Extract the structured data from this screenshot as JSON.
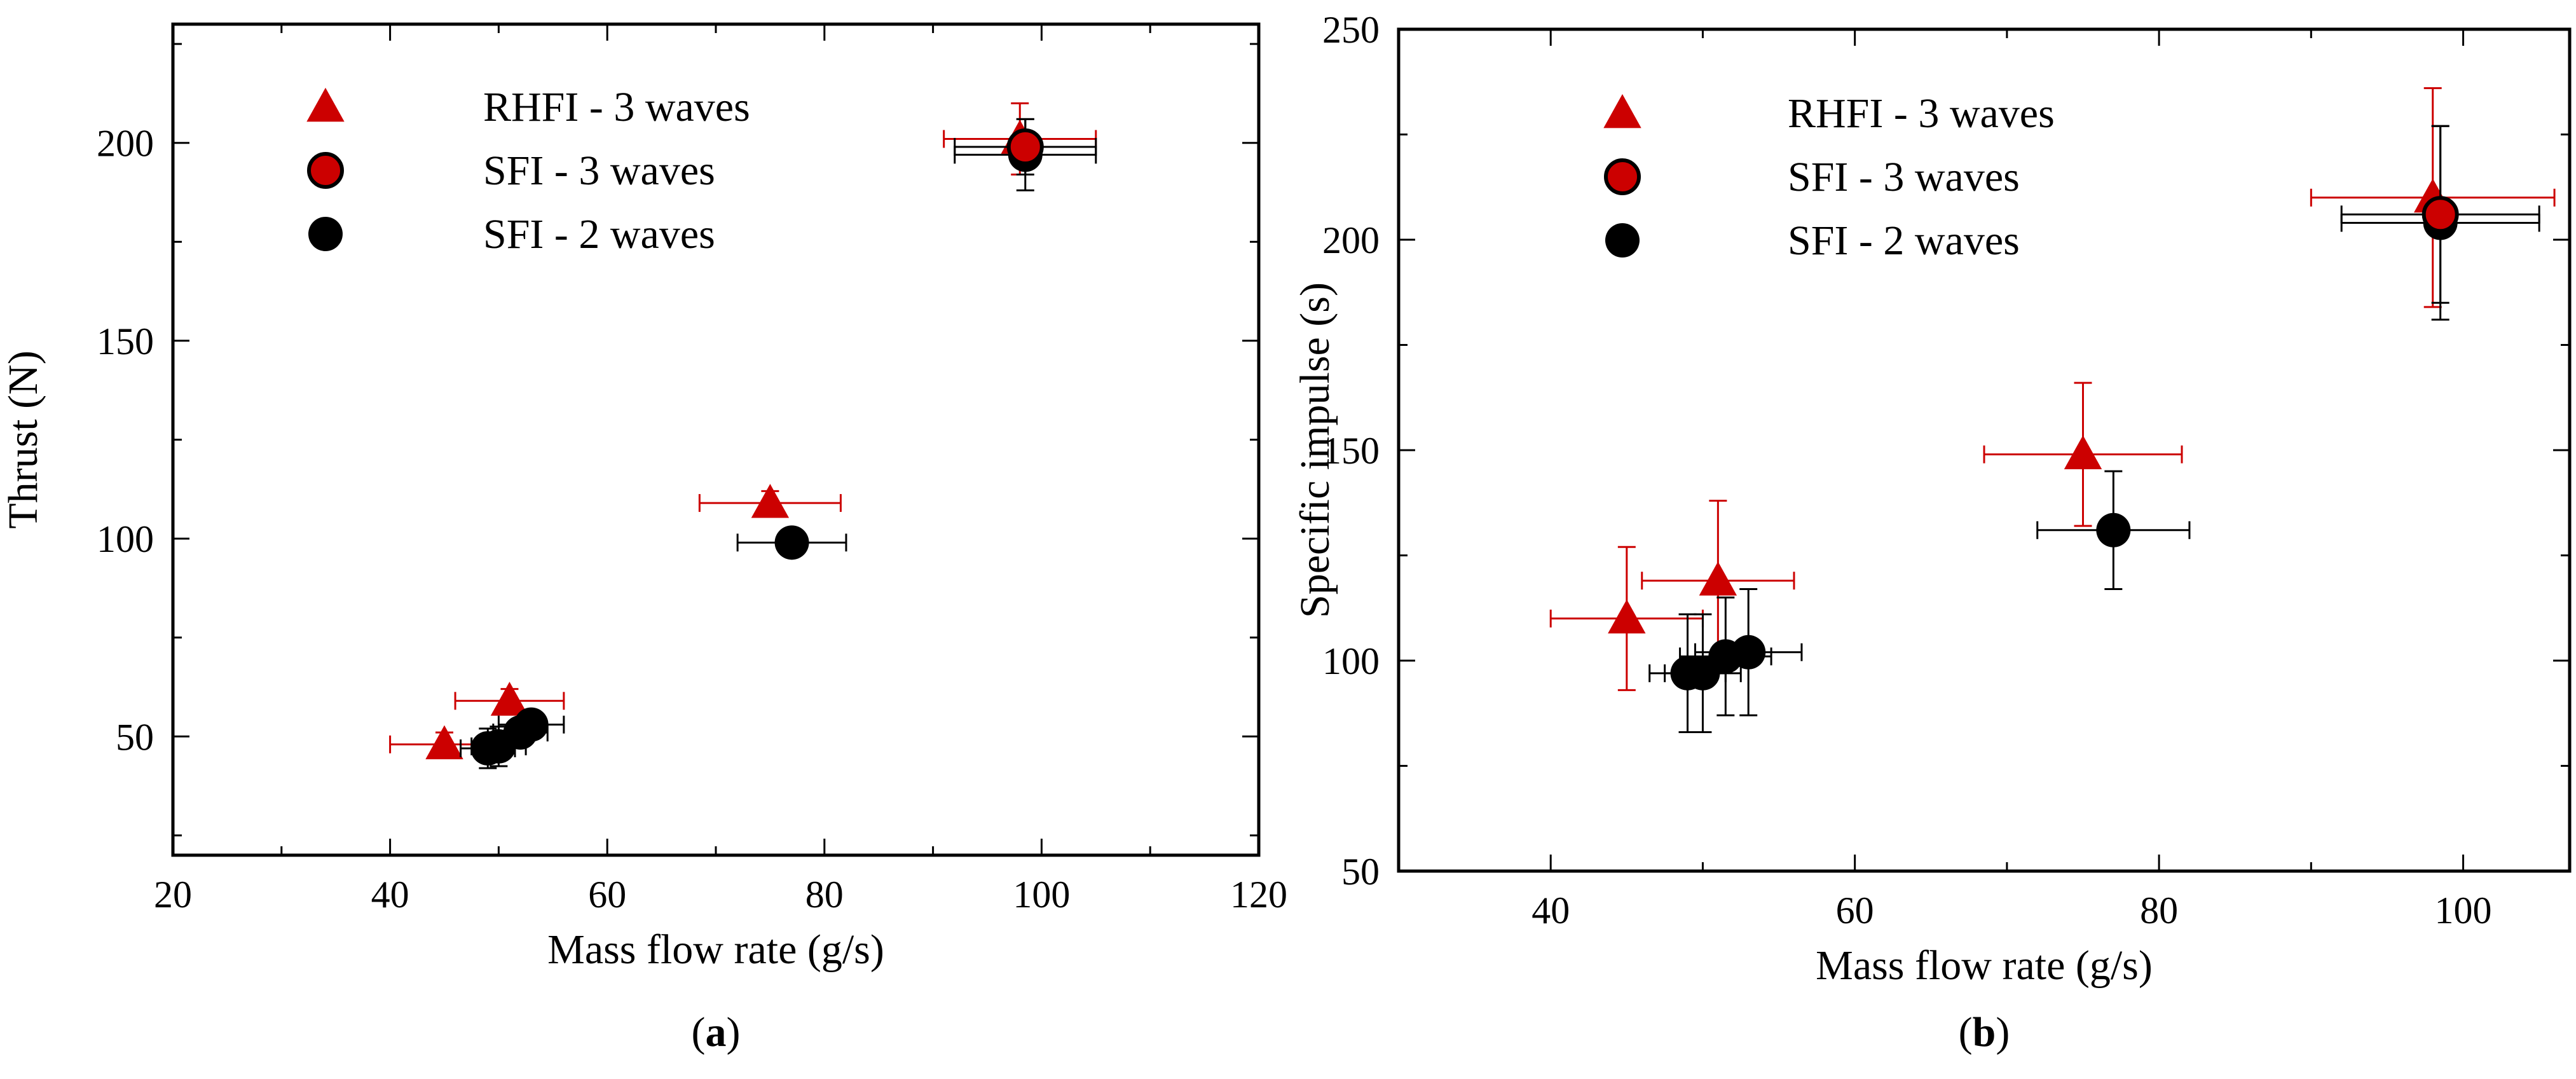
{
  "colors": {
    "rhfi": "#cc0000",
    "sfi3_fill": "#cc0000",
    "sfi3_edge": "#000000",
    "sfi2": "#000000",
    "axis": "#000000"
  },
  "chart_data": [
    {
      "type": "scatter",
      "panel": "a",
      "caption": {
        "open": "(",
        "letter": "a",
        "close": ")"
      },
      "xlabel": "Mass flow rate (g/s)",
      "ylabel": "Thrust (N)",
      "xlim": [
        20,
        120
      ],
      "ylim": [
        20,
        230
      ],
      "xticks": [
        20,
        40,
        60,
        80,
        100,
        120
      ],
      "yticks": [
        50,
        100,
        150,
        200
      ],
      "grid": false,
      "legend_position": "top-left",
      "series": [
        {
          "name": "RHFI - 3 waves",
          "marker": "triangle",
          "points": [
            {
              "x": 45,
              "y": 48,
              "xerr": 5,
              "yerr": 3
            },
            {
              "x": 51,
              "y": 59,
              "xerr": 5,
              "yerr": 3
            },
            {
              "x": 75,
              "y": 109,
              "xerr": 6.5,
              "yerr": 3
            },
            {
              "x": 98,
              "y": 201,
              "xerr": 7,
              "yerr": 9
            }
          ]
        },
        {
          "name": "SFI - 3 waves",
          "marker": "circle-red",
          "points": [
            {
              "x": 98.5,
              "y": 199,
              "xerr": 6.5,
              "yerr": 7
            }
          ]
        },
        {
          "name": "SFI - 2 waves",
          "marker": "circle-black",
          "points": [
            {
              "x": 49,
              "y": 47,
              "xerr": 2.5,
              "yerr": 5
            },
            {
              "x": 50,
              "y": 47.5,
              "xerr": 2.5,
              "yerr": 5
            },
            {
              "x": 52,
              "y": 51,
              "xerr": 2.5,
              "yerr": 3
            },
            {
              "x": 53,
              "y": 53,
              "xerr": 3,
              "yerr": 3
            },
            {
              "x": 77,
              "y": 99,
              "xerr": 5,
              "yerr": 3
            },
            {
              "x": 98.5,
              "y": 197,
              "xerr": 6.5,
              "yerr": 9
            }
          ]
        }
      ]
    },
    {
      "type": "scatter",
      "panel": "b",
      "caption": {
        "open": "(",
        "letter": "b",
        "close": ")"
      },
      "xlabel": "Mass flow rate (g/s)",
      "ylabel": "Specific impulse (s)",
      "xlim": [
        30,
        107
      ],
      "ylim": [
        50,
        250
      ],
      "xticks": [
        40,
        60,
        80,
        100
      ],
      "yticks": [
        50,
        100,
        150,
        200,
        250
      ],
      "grid": false,
      "legend_position": "top-left",
      "series": [
        {
          "name": "RHFI - 3 waves",
          "marker": "triangle",
          "points": [
            {
              "x": 45,
              "y": 110,
              "xerr": 5,
              "yerr": 17
            },
            {
              "x": 51,
              "y": 119,
              "xerr": 5,
              "yerr": 19
            },
            {
              "x": 75,
              "y": 149,
              "xerr": 6.5,
              "yerr": 17
            },
            {
              "x": 98,
              "y": 210,
              "xerr": 8,
              "yerr": 26
            }
          ]
        },
        {
          "name": "SFI - 3 waves",
          "marker": "circle-red",
          "points": [
            {
              "x": 98.5,
              "y": 206,
              "xerr": 6.5,
              "yerr": 21
            }
          ]
        },
        {
          "name": "SFI - 2 waves",
          "marker": "circle-black",
          "points": [
            {
              "x": 49,
              "y": 97,
              "xerr": 2.5,
              "yerr": 14
            },
            {
              "x": 50,
              "y": 97,
              "xerr": 2.5,
              "yerr": 14
            },
            {
              "x": 51.5,
              "y": 101,
              "xerr": 3,
              "yerr": 14
            },
            {
              "x": 53,
              "y": 102,
              "xerr": 3.5,
              "yerr": 15
            },
            {
              "x": 77,
              "y": 131,
              "xerr": 5,
              "yerr": 14
            },
            {
              "x": 98.5,
              "y": 204,
              "xerr": 6.5,
              "yerr": 23
            }
          ]
        }
      ]
    }
  ]
}
